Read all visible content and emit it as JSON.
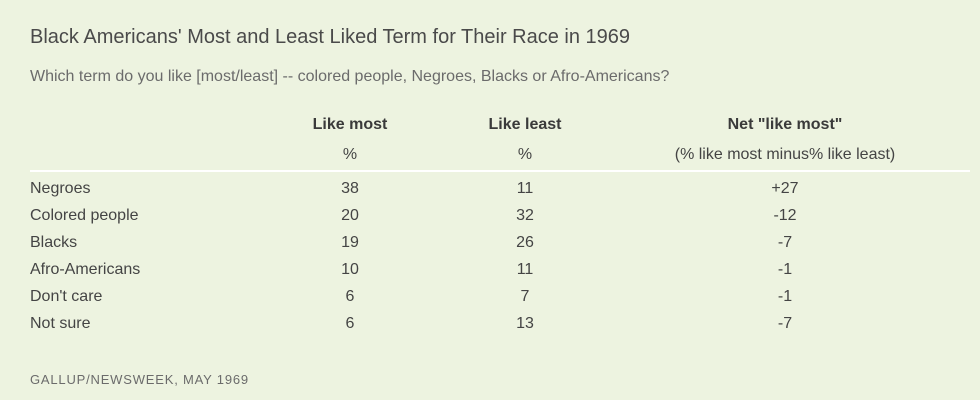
{
  "chart_data": {
    "type": "table",
    "title": "Black Americans' Most and Least Liked Term for Their Race in 1969",
    "subtitle": "Which term do you like [most/least] -- colored people, Negroes, Blacks or Afro-Americans?",
    "columns": [
      {
        "header": "Like most",
        "unit": "%"
      },
      {
        "header": "Like least",
        "unit": "%"
      },
      {
        "header": "Net \"like most\"",
        "unit": "(% like most minus% like least)"
      }
    ],
    "rows": [
      {
        "label": "Negroes",
        "values": [
          "38",
          "11",
          "+27"
        ]
      },
      {
        "label": "Colored people",
        "values": [
          "20",
          "32",
          "-12"
        ]
      },
      {
        "label": "Blacks",
        "values": [
          "19",
          "26",
          "-7"
        ]
      },
      {
        "label": "Afro-Americans",
        "values": [
          "10",
          "11",
          "-1"
        ]
      },
      {
        "label": "Don't care",
        "values": [
          "6",
          "7",
          "-1"
        ]
      },
      {
        "label": "Not sure",
        "values": [
          "6",
          "13",
          "-7"
        ]
      }
    ],
    "source": "GALLUP/NEWSWEEK, MAY 1969"
  }
}
